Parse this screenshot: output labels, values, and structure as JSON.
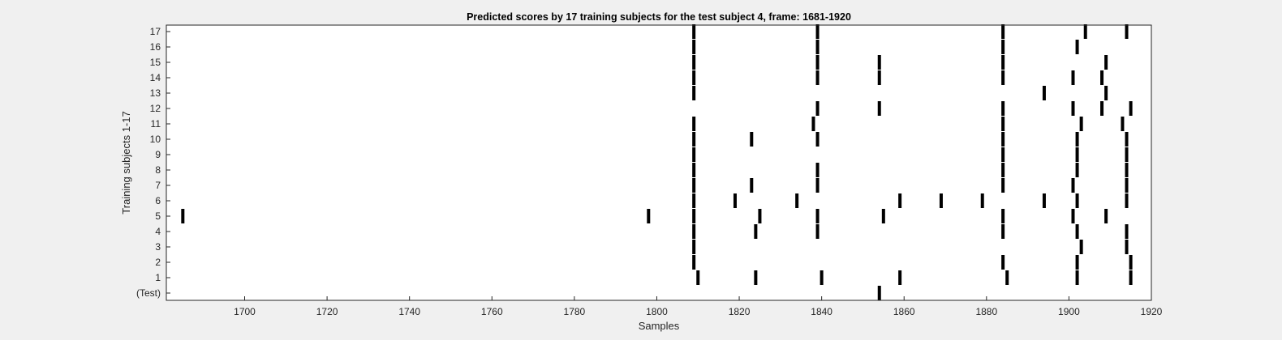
{
  "chart_data": {
    "type": "scatter",
    "title": "Predicted scores by 17 training subjects for the test subject 4, frame: 1681-1920",
    "xlabel": "Samples",
    "ylabel": "Training subjects 1-17",
    "xlim": [
      1681,
      1920
    ],
    "x_ticks": [
      1700,
      1720,
      1740,
      1760,
      1780,
      1800,
      1820,
      1840,
      1860,
      1880,
      1900,
      1920
    ],
    "y_ticks": [
      {
        "row": 0,
        "label": "(Test)"
      },
      {
        "row": 1,
        "label": "1"
      },
      {
        "row": 2,
        "label": "2"
      },
      {
        "row": 3,
        "label": "3"
      },
      {
        "row": 4,
        "label": "4"
      },
      {
        "row": 5,
        "label": "5"
      },
      {
        "row": 6,
        "label": "6"
      },
      {
        "row": 7,
        "label": "7"
      },
      {
        "row": 8,
        "label": "8"
      },
      {
        "row": 9,
        "label": "9"
      },
      {
        "row": 10,
        "label": "10"
      },
      {
        "row": 11,
        "label": "11"
      },
      {
        "row": 12,
        "label": "12"
      },
      {
        "row": 13,
        "label": "13"
      },
      {
        "row": 14,
        "label": "14"
      },
      {
        "row": 15,
        "label": "15"
      },
      {
        "row": 16,
        "label": "16"
      },
      {
        "row": 17,
        "label": "17"
      }
    ],
    "grid": false,
    "marker_color": "#000000",
    "rows": [
      {
        "row": 0,
        "x": [
          1854
        ]
      },
      {
        "row": 1,
        "x": [
          1810,
          1824,
          1840,
          1859,
          1885,
          1902,
          1915
        ]
      },
      {
        "row": 2,
        "x": [
          1809,
          1884,
          1902,
          1915
        ]
      },
      {
        "row": 3,
        "x": [
          1809,
          1903,
          1914
        ]
      },
      {
        "row": 4,
        "x": [
          1809,
          1824,
          1839,
          1884,
          1902,
          1914
        ]
      },
      {
        "row": 5,
        "x": [
          1685,
          1798,
          1809,
          1825,
          1839,
          1855,
          1884,
          1901,
          1909
        ]
      },
      {
        "row": 6,
        "x": [
          1809,
          1819,
          1834,
          1859,
          1869,
          1879,
          1894,
          1902,
          1914
        ]
      },
      {
        "row": 7,
        "x": [
          1809,
          1823,
          1839,
          1884,
          1901,
          1914
        ]
      },
      {
        "row": 8,
        "x": [
          1809,
          1839,
          1884,
          1902,
          1914
        ]
      },
      {
        "row": 9,
        "x": [
          1809,
          1884,
          1902,
          1914
        ]
      },
      {
        "row": 10,
        "x": [
          1809,
          1823,
          1839,
          1884,
          1902,
          1914
        ]
      },
      {
        "row": 11,
        "x": [
          1809,
          1838,
          1884,
          1903,
          1913
        ]
      },
      {
        "row": 12,
        "x": [
          1839,
          1854,
          1884,
          1901,
          1908,
          1915
        ]
      },
      {
        "row": 13,
        "x": [
          1809,
          1894,
          1909
        ]
      },
      {
        "row": 14,
        "x": [
          1809,
          1839,
          1854,
          1884,
          1901,
          1908
        ]
      },
      {
        "row": 15,
        "x": [
          1809,
          1839,
          1854,
          1884,
          1909
        ]
      },
      {
        "row": 16,
        "x": [
          1809,
          1839,
          1884,
          1902
        ]
      },
      {
        "row": 17,
        "x": [
          1809,
          1839,
          1884,
          1904,
          1914
        ]
      }
    ]
  }
}
